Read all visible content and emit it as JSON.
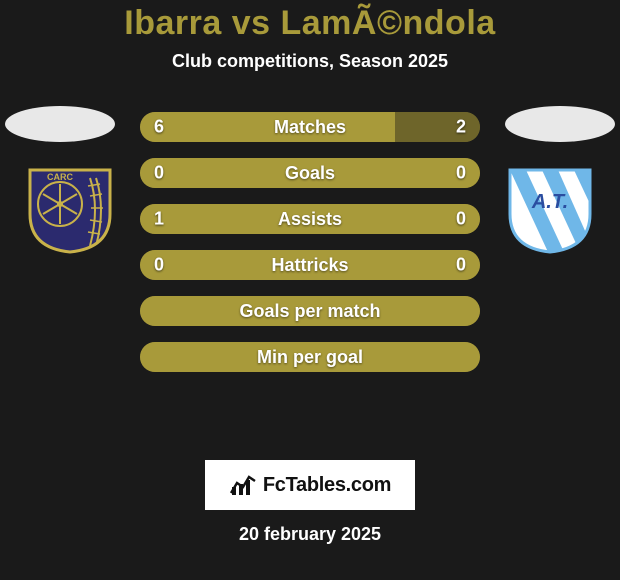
{
  "title": "Ibarra vs LamÃ©ndola",
  "title_fontsize": 34,
  "title_color": "#a89a3a",
  "subtitle": "Club competitions, Season 2025",
  "subtitle_fontsize": 18,
  "subtitle_color": "#ffffff",
  "background_color": "#1a1a1a",
  "ellipse_color": "#e8e8e8",
  "left_crest": {
    "bg": "#2b2a6e",
    "accent": "#c9b24a",
    "text": "CARC",
    "text_color": "#c9b24a"
  },
  "right_crest": {
    "bg": "#ffffff",
    "stripe": "#6fb7e8",
    "text": "A.T.",
    "text_color": "#2a4da0"
  },
  "bars": {
    "track_color": "#6e652a",
    "fill_color": "#a89a3a",
    "label_fontsize": 18,
    "value_fontsize": 18,
    "rows": [
      {
        "label": "Matches",
        "left": "6",
        "right": "2",
        "left_pct": 75,
        "right_pct": 25
      },
      {
        "label": "Goals",
        "left": "0",
        "right": "0",
        "left_pct": 100,
        "right_pct": 0
      },
      {
        "label": "Assists",
        "left": "1",
        "right": "0",
        "left_pct": 100,
        "right_pct": 0
      },
      {
        "label": "Hattricks",
        "left": "0",
        "right": "0",
        "left_pct": 100,
        "right_pct": 0
      },
      {
        "label": "Goals per match",
        "left": "",
        "right": "",
        "left_pct": 100,
        "right_pct": 0
      },
      {
        "label": "Min per goal",
        "left": "",
        "right": "",
        "left_pct": 100,
        "right_pct": 0
      }
    ]
  },
  "brand": {
    "text": "FcTables.com",
    "box_bg": "#ffffff",
    "text_color": "#111111"
  },
  "date": "20 february 2025",
  "date_fontsize": 18,
  "date_color": "#ffffff"
}
